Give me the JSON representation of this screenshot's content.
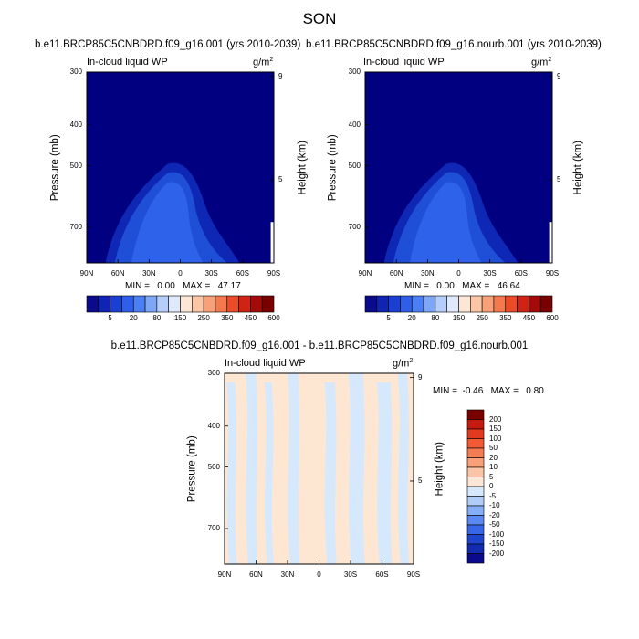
{
  "figure_title": "SON",
  "chart_data": [
    {
      "type": "heatmap",
      "title": "b.e11.BRCP85C5CNBDRD.f09_g16.001 (yrs 2010-2039)",
      "variable": "In-cloud liquid WP",
      "units": "g/m",
      "units_exp": "2",
      "xlabel": "",
      "ylabel": "Pressure (mb)",
      "ylabel_right": "Height (km)",
      "x_ticks": [
        "90N",
        "60N",
        "30N",
        "0",
        "30S",
        "60S",
        "90S"
      ],
      "y_ticks": [
        "300",
        "400",
        "500",
        "700"
      ],
      "y_ticks_right": [
        "9",
        "5"
      ],
      "xlim": [
        90,
        -90
      ],
      "ylim": [
        300,
        850
      ],
      "min_label": "MIN =",
      "min_value": "0.00",
      "max_label": "MAX =",
      "max_value": "47.17",
      "max": 47.17,
      "min": 0.0
    },
    {
      "type": "heatmap",
      "title": "b.e11.BRCP85C5CNBDRD.f09_g16.nourb.001 (yrs 2010-2039)",
      "variable": "In-cloud liquid WP",
      "units": "g/m",
      "units_exp": "2",
      "xlabel": "",
      "ylabel": "Pressure (mb)",
      "ylabel_right": "Height (km)",
      "x_ticks": [
        "90N",
        "60N",
        "30N",
        "0",
        "30S",
        "60S",
        "90S"
      ],
      "y_ticks": [
        "300",
        "400",
        "500",
        "700"
      ],
      "y_ticks_right": [
        "9",
        "5"
      ],
      "xlim": [
        90,
        -90
      ],
      "ylim": [
        300,
        850
      ],
      "min_label": "MIN =",
      "min_value": "0.00",
      "max_label": "MAX =",
      "max_value": "46.64",
      "max": 46.64,
      "min": 0.0
    },
    {
      "type": "heatmap",
      "title": "b.e11.BRCP85C5CNBDRD.f09_g16.001 - b.e11.BRCP85C5CNBDRD.f09_g16.nourb.001",
      "variable": "In-cloud liquid WP",
      "units": "g/m",
      "units_exp": "2",
      "xlabel": "",
      "ylabel": "Pressure (mb)",
      "ylabel_right": "Height (km)",
      "x_ticks": [
        "90N",
        "60N",
        "30N",
        "0",
        "30S",
        "60S",
        "90S"
      ],
      "y_ticks": [
        "300",
        "400",
        "500",
        "700"
      ],
      "y_ticks_right": [
        "9",
        "5"
      ],
      "xlim": [
        90,
        -90
      ],
      "ylim": [
        300,
        850
      ],
      "min_label": "MIN =",
      "min_value": "-0.46",
      "max_label": "MAX =",
      "max_value": "0.80",
      "max": 0.8,
      "min": -0.46
    }
  ],
  "colorbar_top": {
    "labels": [
      "5",
      "20",
      "80",
      "150",
      "250",
      "350",
      "450",
      "600"
    ],
    "colors": [
      "#0a0a8c",
      "#0f24b3",
      "#1a3fd1",
      "#2f5ee8",
      "#4c7ff5",
      "#7ea6f7",
      "#b5cdf8",
      "#dfe9fb",
      "#fde6d6",
      "#fbc6a6",
      "#f8a077",
      "#f47a4e",
      "#ea4b28",
      "#cf2414",
      "#a30b0b",
      "#7a0000"
    ]
  },
  "colorbar_diff": {
    "labels": [
      "200",
      "150",
      "100",
      "50",
      "20",
      "10",
      "5",
      "0",
      "-5",
      "-10",
      "-20",
      "-50",
      "-100",
      "-150",
      "-200"
    ],
    "colors": [
      "#7a0000",
      "#c51a10",
      "#e23a1e",
      "#f15a33",
      "#f47c52",
      "#f8a07a",
      "#fbc4a6",
      "#fde6d6",
      "#d6e8fb",
      "#b0cdf8",
      "#86aef6",
      "#5a8af1",
      "#3766e6",
      "#1f45cf",
      "#122bb0",
      "#0a0a8c"
    ]
  },
  "colors": {
    "deep": "#000080",
    "c1": "#0f27b5",
    "c2": "#1f4fd6",
    "c3": "#2f62ea",
    "diff_pos": "#fde7d3",
    "diff_neg": "#d6e8fb"
  }
}
